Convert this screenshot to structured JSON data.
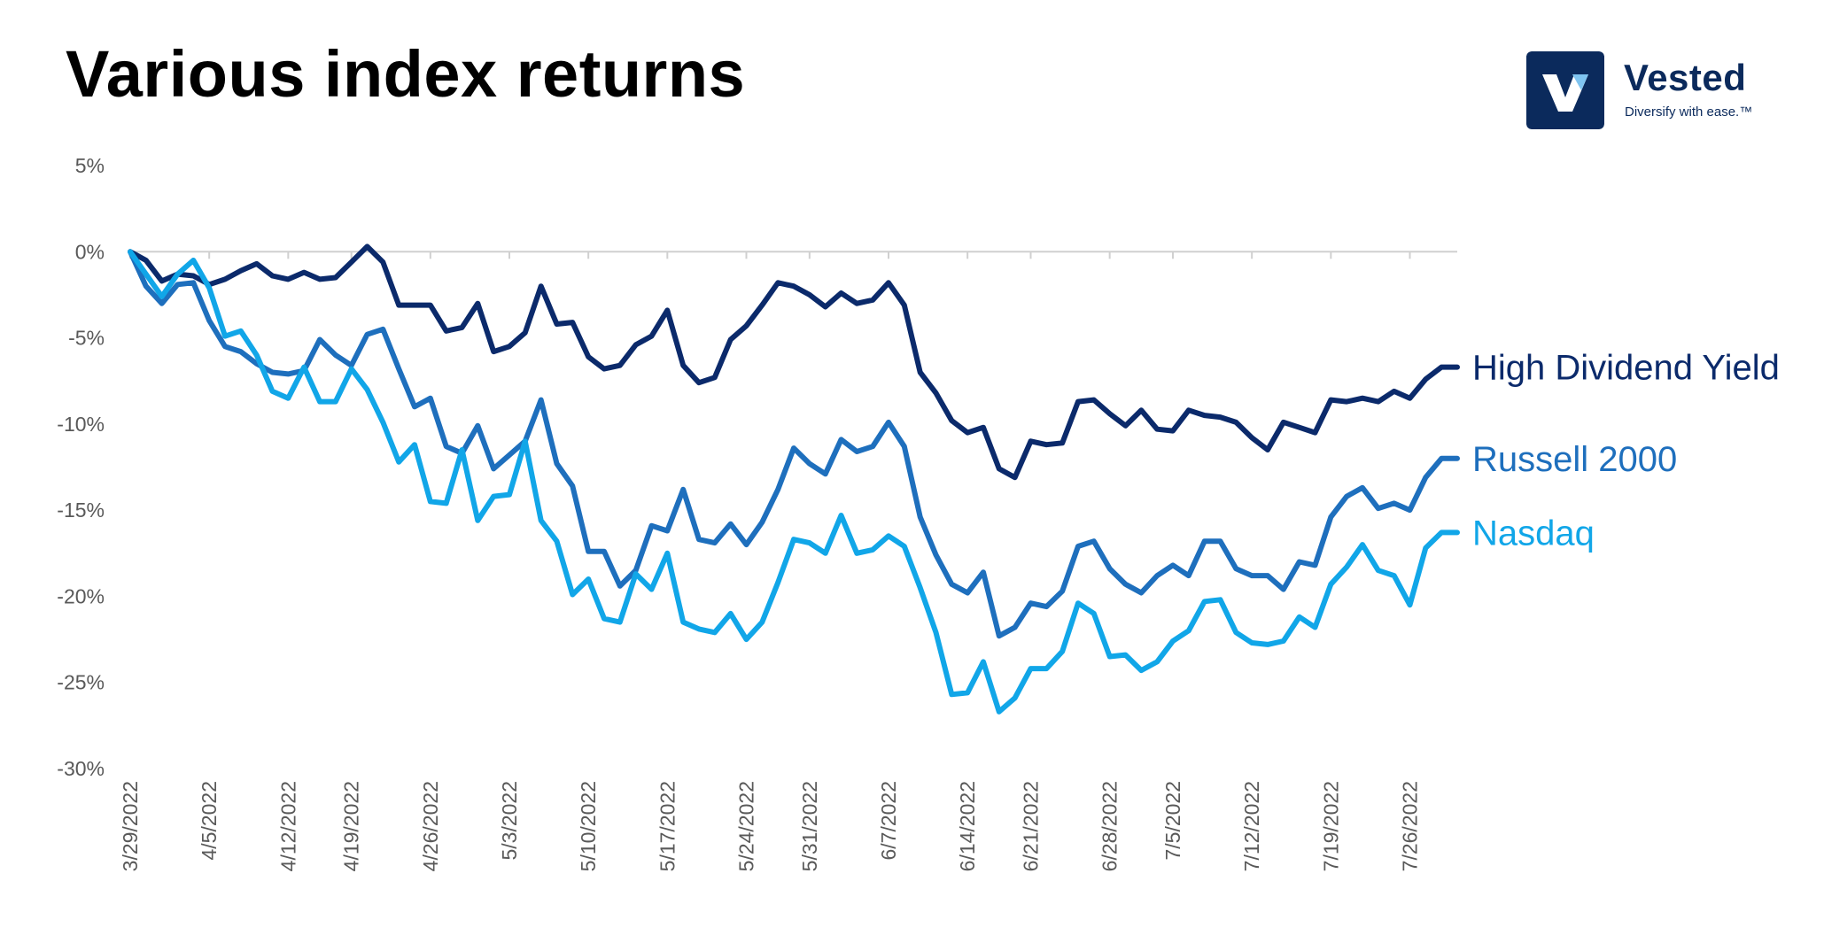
{
  "title": "Various index returns",
  "brand": {
    "name": "Vested",
    "tagline": "Diversify with ease.™",
    "color": "#0b2a5c",
    "icon": "vested-logo-icon"
  },
  "chart_data": {
    "type": "line",
    "title": "Various index returns",
    "xlabel": "",
    "ylabel": "",
    "ylim": [
      -30,
      5
    ],
    "y_ticks": [
      5,
      0,
      -5,
      -10,
      -15,
      -20,
      -25,
      -30
    ],
    "y_tick_labels": [
      "5%",
      "0%",
      "-5%",
      "-10%",
      "-15%",
      "-20%",
      "-25%",
      "-30%"
    ],
    "x_tick_labels": [
      "3/29/2022",
      "4/5/2022",
      "4/12/2022",
      "4/19/2022",
      "4/26/2022",
      "5/3/2022",
      "5/10/2022",
      "5/17/2022",
      "5/24/2022",
      "5/31/2022",
      "6/7/2022",
      "6/14/2022",
      "6/21/2022",
      "6/28/2022",
      "7/5/2022",
      "7/12/2022",
      "7/19/2022",
      "7/26/2022"
    ],
    "grid": false,
    "legend": "direct labels at right end of lines",
    "x": [
      "3/29/2022",
      "3/30/2022",
      "3/31/2022",
      "4/1/2022",
      "4/4/2022",
      "4/5/2022",
      "4/6/2022",
      "4/7/2022",
      "4/8/2022",
      "4/11/2022",
      "4/12/2022",
      "4/13/2022",
      "4/14/2022",
      "4/18/2022",
      "4/19/2022",
      "4/20/2022",
      "4/21/2022",
      "4/22/2022",
      "4/25/2022",
      "4/26/2022",
      "4/27/2022",
      "4/28/2022",
      "4/29/2022",
      "5/2/2022",
      "5/3/2022",
      "5/4/2022",
      "5/5/2022",
      "5/6/2022",
      "5/9/2022",
      "5/10/2022",
      "5/11/2022",
      "5/12/2022",
      "5/13/2022",
      "5/16/2022",
      "5/17/2022",
      "5/18/2022",
      "5/19/2022",
      "5/20/2022",
      "5/23/2022",
      "5/24/2022",
      "5/25/2022",
      "5/26/2022",
      "5/27/2022",
      "5/31/2022",
      "6/1/2022",
      "6/2/2022",
      "6/3/2022",
      "6/6/2022",
      "6/7/2022",
      "6/8/2022",
      "6/9/2022",
      "6/10/2022",
      "6/13/2022",
      "6/14/2022",
      "6/15/2022",
      "6/16/2022",
      "6/17/2022",
      "6/21/2022",
      "6/22/2022",
      "6/23/2022",
      "6/24/2022",
      "6/27/2022",
      "6/28/2022",
      "6/29/2022",
      "6/30/2022",
      "7/1/2022",
      "7/5/2022",
      "7/6/2022",
      "7/7/2022",
      "7/8/2022",
      "7/11/2022",
      "7/12/2022",
      "7/13/2022",
      "7/14/2022",
      "7/15/2022",
      "7/18/2022",
      "7/19/2022",
      "7/20/2022",
      "7/21/2022",
      "7/22/2022",
      "7/25/2022",
      "7/26/2022",
      "7/27/2022",
      "7/28/2022",
      "7/29/2022"
    ],
    "series": [
      {
        "name": "High Dividend Yield",
        "color": "#0b2a6b",
        "values": [
          0.0,
          -0.5,
          -1.7,
          -1.3,
          -1.4,
          -1.9,
          -1.6,
          -1.1,
          -0.7,
          -1.4,
          -1.6,
          -1.2,
          -1.6,
          -1.5,
          -0.6,
          0.3,
          -0.6,
          -3.1,
          -3.1,
          -3.1,
          -4.6,
          -4.4,
          -3.0,
          -5.8,
          -5.5,
          -4.7,
          -2.0,
          -4.2,
          -4.1,
          -6.1,
          -6.8,
          -6.6,
          -5.4,
          -4.9,
          -3.4,
          -6.6,
          -7.6,
          -7.3,
          -5.1,
          -4.3,
          -3.1,
          -1.8,
          -2.0,
          -2.5,
          -3.2,
          -2.4,
          -3.0,
          -2.8,
          -1.8,
          -3.1,
          -7.0,
          -8.2,
          -9.8,
          -10.5,
          -10.2,
          -12.6,
          -13.1,
          -11.0,
          -11.2,
          -11.1,
          -8.7,
          -8.6,
          -9.4,
          -10.1,
          -9.2,
          -10.3,
          -10.4,
          -9.2,
          -9.5,
          -9.6,
          -9.9,
          -10.8,
          -11.5,
          -9.9,
          -10.2,
          -10.5,
          -8.6,
          -8.7,
          -8.5,
          -8.7,
          -8.1,
          -8.5,
          -7.4,
          -6.7,
          -6.7
        ],
        "end_label": "High Dividend Yield"
      },
      {
        "name": "Russell 2000",
        "color": "#1e6fbd",
        "values": [
          0.0,
          -2.0,
          -3.0,
          -1.9,
          -1.8,
          -4.0,
          -5.5,
          -5.8,
          -6.5,
          -7.0,
          -7.1,
          -6.9,
          -5.1,
          -6.0,
          -6.6,
          -4.8,
          -4.5,
          -6.8,
          -9.0,
          -8.5,
          -11.3,
          -11.7,
          -10.1,
          -12.6,
          -11.8,
          -11.0,
          -8.6,
          -12.3,
          -13.6,
          -17.4,
          -17.4,
          -19.4,
          -18.5,
          -15.9,
          -16.2,
          -13.8,
          -16.7,
          -16.9,
          -15.8,
          -17.0,
          -15.7,
          -13.8,
          -11.4,
          -12.3,
          -12.9,
          -10.9,
          -11.6,
          -11.3,
          -9.9,
          -11.3,
          -15.4,
          -17.6,
          -19.3,
          -19.8,
          -18.6,
          -22.3,
          -21.8,
          -20.4,
          -20.6,
          -19.7,
          -17.1,
          -16.8,
          -18.4,
          -19.3,
          -19.8,
          -18.8,
          -18.2,
          -18.8,
          -16.8,
          -16.8,
          -18.4,
          -18.8,
          -18.8,
          -19.6,
          -18.0,
          -18.2,
          -15.4,
          -14.2,
          -13.7,
          -14.9,
          -14.6,
          -15.0,
          -13.1,
          -12.0,
          -12.0
        ],
        "end_label": "Russell 2000"
      },
      {
        "name": "Nasdaq",
        "color": "#11a6e8",
        "values": [
          0.0,
          -1.3,
          -2.6,
          -1.3,
          -0.5,
          -2.1,
          -4.9,
          -4.6,
          -6.0,
          -8.1,
          -8.5,
          -6.7,
          -8.7,
          -8.7,
          -6.8,
          -8.0,
          -9.9,
          -12.2,
          -11.2,
          -14.5,
          -14.6,
          -11.5,
          -15.6,
          -14.2,
          -14.1,
          -11.0,
          -15.6,
          -16.8,
          -19.9,
          -19.0,
          -21.3,
          -21.5,
          -18.7,
          -19.6,
          -17.5,
          -21.5,
          -21.9,
          -22.1,
          -21.0,
          -22.5,
          -21.5,
          -19.2,
          -16.7,
          -16.9,
          -17.5,
          -15.3,
          -17.5,
          -17.3,
          -16.5,
          -17.1,
          -19.5,
          -22.1,
          -25.7,
          -25.6,
          -23.8,
          -26.7,
          -25.9,
          -24.2,
          -24.2,
          -23.2,
          -20.4,
          -21.0,
          -23.5,
          -23.4,
          -24.3,
          -23.8,
          -22.6,
          -22.0,
          -20.3,
          -20.2,
          -22.1,
          -22.7,
          -22.8,
          -22.6,
          -21.2,
          -21.8,
          -19.3,
          -18.3,
          -17.0,
          -18.5,
          -18.8,
          -20.5,
          -17.2,
          -16.3,
          -16.3
        ],
        "end_label": "Nasdaq"
      }
    ]
  }
}
